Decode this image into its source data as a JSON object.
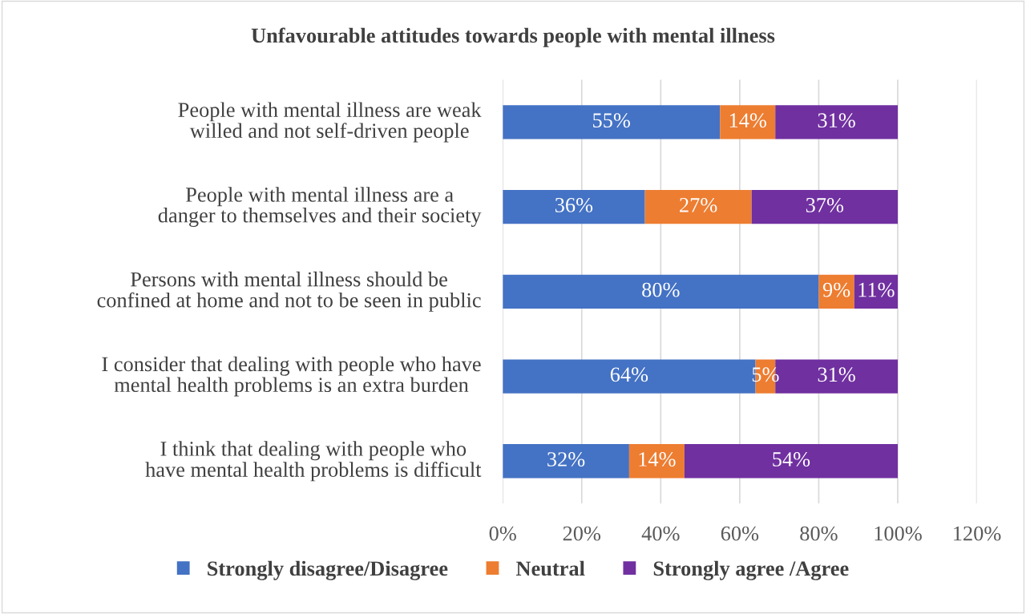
{
  "chart_data": {
    "type": "bar",
    "orientation": "horizontal",
    "stacked": true,
    "title": "Unfavourable attitudes towards people with mental illness",
    "categories": [
      "People with mental illness are weak willed and not self-driven people",
      "People with mental illness are a danger to themselves and their society",
      "Persons with mental illness should be confined at home and not to be seen in public",
      "I consider that dealing with people who have mental health problems is an extra burden",
      "I think that dealing with people who have mental health problems is difficult"
    ],
    "series": [
      {
        "name": "Strongly disagree/Disagree",
        "color": "#4472c4",
        "values": [
          55,
          36,
          80,
          64,
          32
        ],
        "value_labels": [
          "55%",
          "36%",
          "80%",
          "64%",
          "32%"
        ]
      },
      {
        "name": "Neutral",
        "color": "#ed7d31",
        "values": [
          14,
          27,
          9,
          5,
          14
        ],
        "value_labels": [
          "14%",
          "27%",
          "9%",
          "5%",
          "14%"
        ]
      },
      {
        "name": "Strongly agree /Agree",
        "color": "#7030a0",
        "values": [
          31,
          37,
          11,
          31,
          54
        ],
        "value_labels": [
          "31%",
          "37%",
          "11%",
          "31%",
          "54%"
        ]
      }
    ],
    "xlim": [
      0,
      120
    ],
    "xticks": [
      {
        "value": 0,
        "label": "0%"
      },
      {
        "value": 20,
        "label": "20%"
      },
      {
        "value": 40,
        "label": "40%"
      },
      {
        "value": 60,
        "label": "60%"
      },
      {
        "value": 80,
        "label": "80%"
      },
      {
        "value": 100,
        "label": "100%"
      },
      {
        "value": 120,
        "label": "120%"
      }
    ],
    "grid": "x",
    "legend": "bottom"
  }
}
